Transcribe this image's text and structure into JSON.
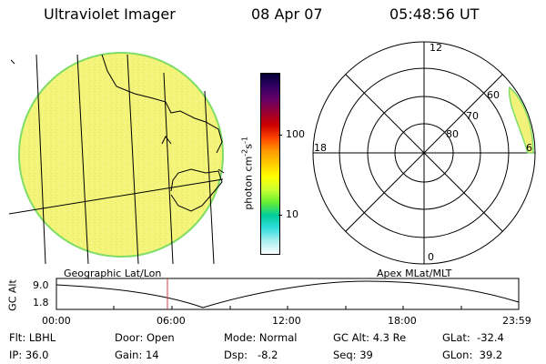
{
  "header": {
    "instrument": "Ultraviolet Imager",
    "date": "08 Apr 07",
    "time": "05:48:56 UT"
  },
  "colorbar": {
    "label": "photon cm-2s-1",
    "ticks": [
      "100",
      "10"
    ],
    "colors": [
      "#000033",
      "#330066",
      "#660066",
      "#990033",
      "#cc0000",
      "#ff4400",
      "#ff9900",
      "#ffcc00",
      "#ffff00",
      "#ccff33",
      "#66ee33",
      "#00cc99",
      "#33dddd",
      "#aaeeee",
      "#ffffff"
    ]
  },
  "polar_plot": {
    "mlt_labels": [
      "12",
      "18",
      "6",
      "0"
    ],
    "mlat_labels": [
      "60",
      "70",
      "80"
    ]
  },
  "projection_labels": {
    "left": "Geographic Lat/Lon",
    "right": "Apex MLat/MLT"
  },
  "altitude_plot": {
    "ylabel": "GC Alt",
    "yticks": [
      "9.0",
      "1.8"
    ],
    "xticks": [
      "00:00",
      "06:00",
      "12:00",
      "18:00",
      "23:59"
    ]
  },
  "info": {
    "flt": "Flt: LBHL",
    "ip": "IP: 36.0",
    "door": "Door: Open",
    "gain": "Gain: 14",
    "mode": "Mode: Normal",
    "dsp": "Dsp:   -8.2",
    "gcalt": "GC Alt: 4.3 Re",
    "seq": "Seq: 39",
    "glat": "GLat:  -32.4",
    "glon": "GLon:  39.2"
  },
  "colors": {
    "disk_fill": "#f4f47a",
    "disk_edge": "#7fdd66",
    "aurora_fill": "#f2f27a",
    "marker": "#d04040"
  }
}
